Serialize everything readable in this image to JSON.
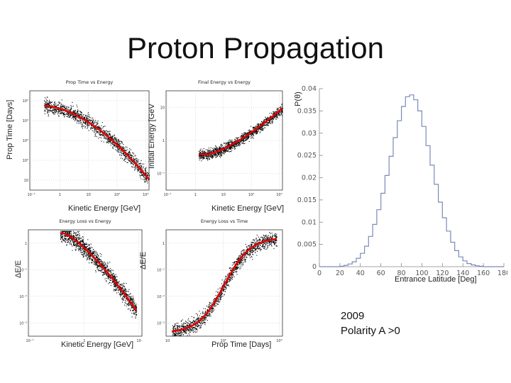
{
  "title": "Proton Propagation",
  "chart_data": [
    {
      "type": "scatter",
      "title": "Prop Time vs Energy",
      "xlabel": "Kinetic Energy [GeV]",
      "ylabel": "Prop Time [Days]",
      "x_scale": "log",
      "y_scale": "log",
      "x_ticks": [
        "10⁻¹",
        "1",
        "10",
        "10²",
        "10³"
      ],
      "y_ticks": [
        "10",
        "10²",
        "10³",
        "10⁴",
        "10⁵"
      ],
      "colors": {
        "points": "#000000",
        "fit": "#e00000"
      }
    },
    {
      "type": "scatter",
      "title": "Final Energy vs Energy",
      "xlabel": "Kinetic Energy [GeV]",
      "ylabel": "Initial Energy [GeV",
      "x_scale": "log",
      "y_scale": "log",
      "x_ticks": [
        "10⁻¹",
        "1",
        "10",
        "10²",
        "10³"
      ],
      "y_ticks": [
        "10⁻¹",
        "1",
        "10"
      ],
      "colors": {
        "points": "#000000",
        "fit": "#e00000"
      }
    },
    {
      "type": "scatter",
      "title": "Energy Loss vs Energy",
      "xlabel": "Kinetic Energy [GeV]",
      "ylabel": "ΔE/E",
      "x_scale": "log",
      "y_scale": "log",
      "x_ticks": [
        "10⁻¹",
        "1",
        "10"
      ],
      "y_ticks": [
        "10⁻³",
        "10⁻²",
        "10⁻¹",
        "1"
      ],
      "colors": {
        "points": "#000000",
        "fit": "#e00000"
      }
    },
    {
      "type": "scatter",
      "title": "Energy Loss vs Time",
      "xlabel": "Prop Time [Days]",
      "ylabel": "ΔE/E",
      "x_scale": "log",
      "y_scale": "log",
      "x_ticks": [
        "10",
        "10²",
        "10³"
      ],
      "y_ticks": [
        "10⁻³",
        "10⁻²",
        "10⁻¹",
        "1"
      ],
      "colors": {
        "points": "#000000",
        "fit": "#e00000"
      }
    },
    {
      "type": "line",
      "title": "",
      "xlabel": "Entrance Latitude [Deg]",
      "ylabel": "P(θ)",
      "xlim": [
        0,
        180
      ],
      "ylim": [
        0,
        0.04
      ],
      "x_ticks": [
        0,
        20,
        40,
        60,
        80,
        100,
        120,
        140,
        160,
        180
      ],
      "y_ticks": [
        0,
        0.005,
        0.01,
        0.015,
        0.02,
        0.025,
        0.03,
        0.035,
        0.04
      ],
      "color": "#7a8ab8",
      "x": [
        22,
        26,
        30,
        34,
        38,
        42,
        46,
        50,
        54,
        58,
        62,
        66,
        70,
        74,
        78,
        82,
        86,
        90,
        94,
        98,
        102,
        106,
        110,
        114,
        118,
        122,
        126,
        130,
        134,
        138,
        142,
        146,
        150,
        154,
        158,
        162
      ],
      "values": [
        0.0001,
        0.0003,
        0.0006,
        0.0011,
        0.0019,
        0.003,
        0.0046,
        0.0068,
        0.0095,
        0.0128,
        0.0165,
        0.0205,
        0.0248,
        0.029,
        0.0328,
        0.036,
        0.0382,
        0.0386,
        0.0375,
        0.035,
        0.0315,
        0.0272,
        0.0228,
        0.0185,
        0.0145,
        0.011,
        0.008,
        0.0055,
        0.0036,
        0.0022,
        0.0013,
        0.0007,
        0.0004,
        0.0002,
        0.0001,
        0.0
      ]
    }
  ],
  "notes": {
    "year": "2009",
    "polarity": "Polarity A >0"
  }
}
